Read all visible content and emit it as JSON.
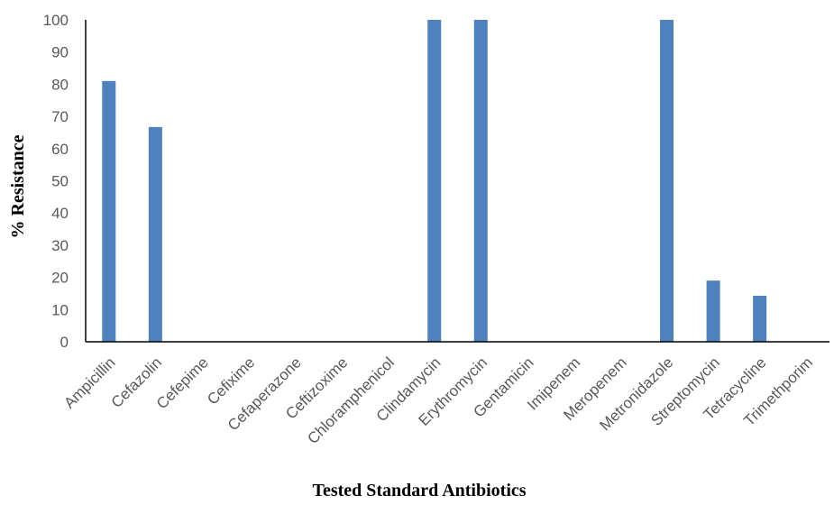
{
  "chart_data": {
    "type": "bar",
    "title": "",
    "xlabel": "Tested Standard Antibiotics",
    "ylabel": "% Resistance",
    "ylim": [
      0,
      100
    ],
    "yticks": [
      0,
      10,
      20,
      30,
      40,
      50,
      60,
      70,
      80,
      90,
      100
    ],
    "grid": false,
    "legend": "none",
    "bar_color": "#4f81bd",
    "categories": [
      "Ampicillin",
      "Cefazolin",
      "Cefepime",
      "Cefixime",
      "Cefaperazone",
      "Ceftizoxime",
      "Chloramphenicol",
      "Clindamycin",
      "Erythromycin",
      "Gentamicin",
      "Imipenem",
      "Meropenem",
      "Metronidazole",
      "Streptomycin",
      "Tetracycline",
      "Trimethporim"
    ],
    "series": [
      {
        "values": [
          81,
          66.7,
          0,
          0,
          0,
          0,
          0,
          100,
          100,
          0,
          0,
          0,
          100,
          19,
          14.3,
          0
        ]
      }
    ]
  }
}
